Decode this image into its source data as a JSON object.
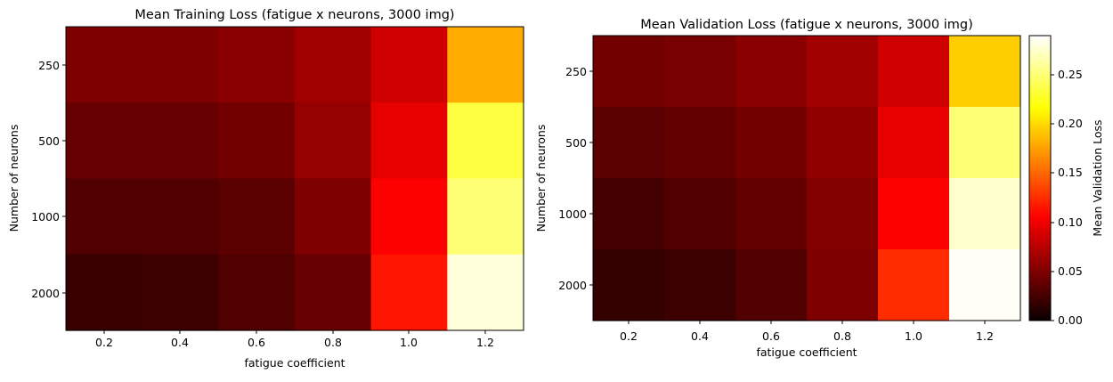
{
  "chart_data": [
    {
      "type": "heatmap",
      "title": "Mean Training Loss (fatigue x neurons, 3000 img)",
      "xlabel": "fatigue coefficient",
      "ylabel": "Number of neurons",
      "x": [
        "0.2",
        "0.4",
        "0.6",
        "0.8",
        "1.0",
        "1.2"
      ],
      "y": [
        "250",
        "500",
        "1000",
        "2000"
      ],
      "colormap": "hot",
      "vmin": 0.0,
      "vmax": 0.29,
      "values": [
        [
          0.05,
          0.05,
          0.055,
          0.065,
          0.085,
          0.18
        ],
        [
          0.04,
          0.04,
          0.045,
          0.06,
          0.095,
          0.235
        ],
        [
          0.03,
          0.03,
          0.035,
          0.05,
          0.105,
          0.25
        ],
        [
          0.02,
          0.022,
          0.03,
          0.04,
          0.115,
          0.28
        ]
      ]
    },
    {
      "type": "heatmap",
      "title": "Mean Validation Loss (fatigue x neurons, 3000 img)",
      "xlabel": "fatigue coefficient",
      "ylabel": "Number of neurons",
      "x": [
        "0.2",
        "0.4",
        "0.6",
        "0.8",
        "1.0",
        "1.2"
      ],
      "y": [
        "250",
        "500",
        "1000",
        "2000"
      ],
      "colormap": "hot",
      "vmin": 0.0,
      "vmax": 0.29,
      "values": [
        [
          0.045,
          0.048,
          0.055,
          0.065,
          0.085,
          0.195
        ],
        [
          0.035,
          0.038,
          0.045,
          0.058,
          0.095,
          0.25
        ],
        [
          0.025,
          0.03,
          0.038,
          0.052,
          0.105,
          0.275
        ],
        [
          0.018,
          0.022,
          0.03,
          0.05,
          0.125,
          0.287
        ]
      ],
      "colorbar": {
        "label": "Mean Validation Loss",
        "ticks": [
          0.0,
          0.05,
          0.1,
          0.15,
          0.2,
          0.25
        ],
        "tick_labels": [
          "0.00",
          "0.05",
          "0.10",
          "0.15",
          "0.20",
          "0.25"
        ]
      }
    }
  ]
}
